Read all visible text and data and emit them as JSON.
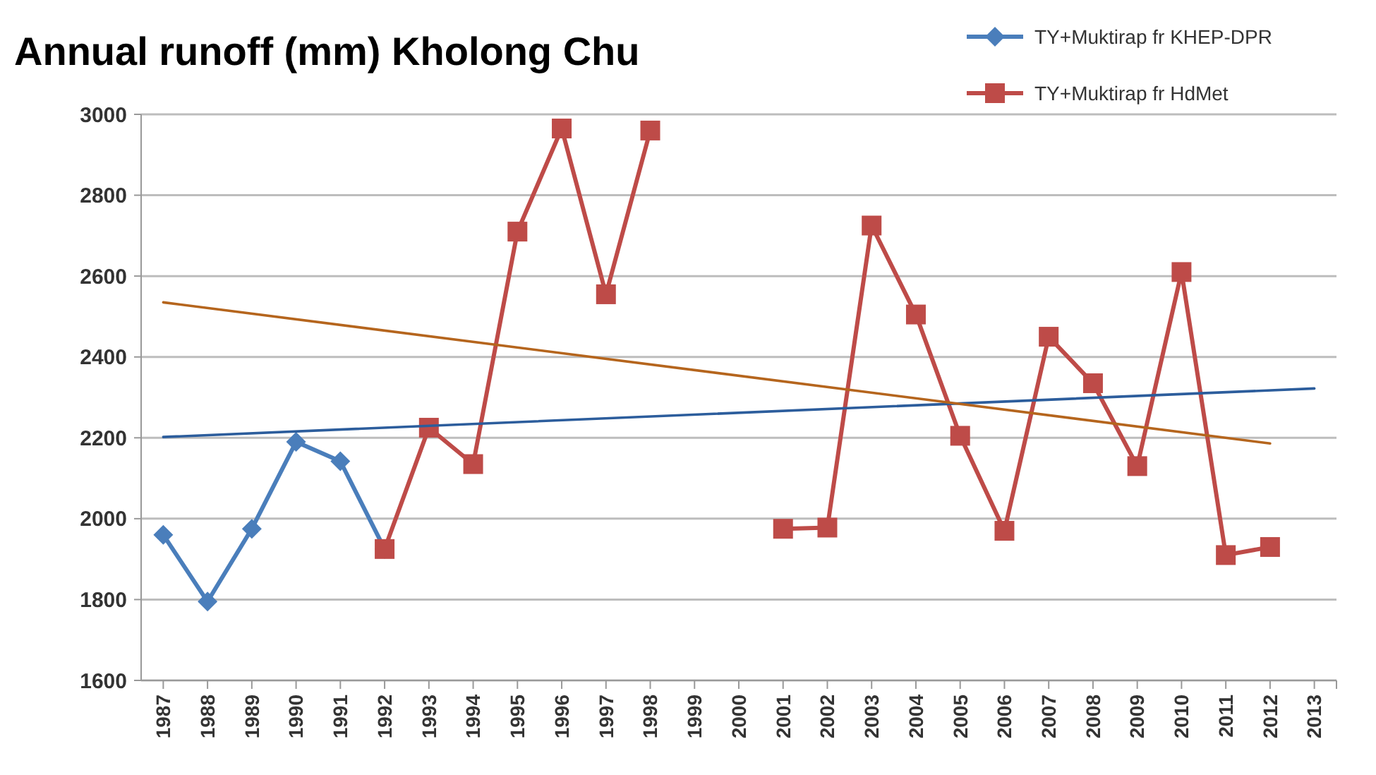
{
  "chart_data": {
    "type": "line",
    "title": "Annual runoff (mm) Kholong Chu",
    "x": [
      1987,
      1988,
      1989,
      1990,
      1991,
      1992,
      1993,
      1994,
      1995,
      1996,
      1997,
      1998,
      1999,
      2000,
      2001,
      2002,
      2003,
      2004,
      2005,
      2006,
      2007,
      2008,
      2009,
      2010,
      2011,
      2012
    ],
    "xlim": [
      1986.5,
      2013.5
    ],
    "xticks": [
      1987,
      1988,
      1989,
      1990,
      1991,
      1992,
      1993,
      1994,
      1995,
      1996,
      1997,
      1998,
      1999,
      2000,
      2001,
      2002,
      2003,
      2004,
      2005,
      2006,
      2007,
      2008,
      2009,
      2010,
      2011,
      2012,
      2013
    ],
    "series": [
      {
        "name": "TY+Muktirap fr KHEP-DPR",
        "color": "#4a7ebb",
        "marker": "diamond",
        "values": [
          1960,
          1795,
          1975,
          2190,
          2142,
          1925,
          null,
          null,
          null,
          null,
          null,
          null,
          null,
          null,
          null,
          null,
          null,
          null,
          null,
          null,
          null,
          null,
          null,
          null,
          null,
          null
        ]
      },
      {
        "name": "TY+Muktirap fr HdMet",
        "color": "#be4b48",
        "marker": "square",
        "values": [
          null,
          null,
          null,
          null,
          null,
          1925,
          2225,
          2135,
          2710,
          2965,
          2555,
          2960,
          null,
          null,
          1975,
          1978,
          2725,
          2505,
          2205,
          1970,
          2450,
          2335,
          2130,
          2610,
          1910,
          1930
        ]
      },
      {
        "type": "line",
        "color": "#2c5d9c",
        "marker": "none",
        "x": [
          1987,
          2013
        ],
        "values": [
          2202,
          2322
        ]
      },
      {
        "type": "line",
        "color": "#b5651d",
        "marker": "none",
        "x": [
          1987,
          2012
        ],
        "values": [
          2535,
          2186
        ]
      }
    ],
    "ylim": [
      1600,
      3000
    ],
    "yticks": [
      1600,
      1800,
      2000,
      2200,
      2400,
      2600,
      2800,
      3000
    ],
    "grid": "y",
    "legend": "top right"
  }
}
